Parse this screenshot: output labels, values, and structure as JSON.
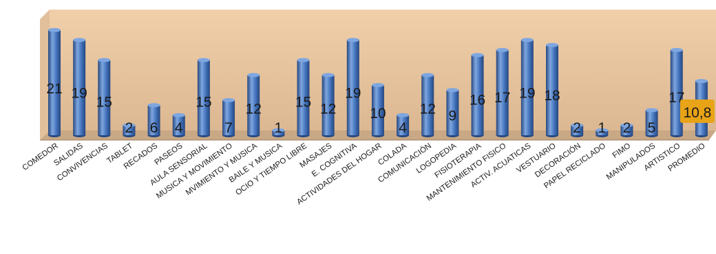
{
  "chart_data": {
    "type": "bar",
    "title": "",
    "xlabel": "",
    "ylabel": "",
    "ylim": [
      0,
      22
    ],
    "grid": false,
    "legend": "none",
    "categories": [
      "COMEDOR",
      "SALIDAS",
      "CONVIVENCIAS",
      "TABLET",
      "RECADOS",
      "PASEOS",
      "AULA SENSORIAL",
      "MUSICA Y MOVIMIENTO",
      "MVIMIENTO Y MUSICA",
      "BAILE Y MUSICA",
      "OCIO Y TIEMPO LIBRE",
      "MASAJES",
      "E. COGNITIVA",
      "ACTIVIDADES DEL HOGAR",
      "COLADA",
      "COMUNICACIÓN",
      "LOGOPEDIA",
      "FISIOTERAPIA",
      "MANTENIMIENTO FISICO",
      "ACTIV. ACUATICAS",
      "VESTUARIO",
      "DECORACIÓN",
      "PAPEL RECICLADO",
      "FIMO",
      "MANIPULADOS",
      "ARTISTICO",
      "PROMEDIO"
    ],
    "values": [
      21,
      19,
      15,
      2,
      6,
      4,
      15,
      7,
      12,
      1,
      15,
      12,
      19,
      10,
      4,
      12,
      9,
      16,
      17,
      19,
      18,
      2,
      1,
      2,
      5,
      17,
      10.8
    ],
    "data_labels": [
      "21",
      "19",
      "15",
      "2",
      "6",
      "4",
      "15",
      "7",
      "12",
      "1",
      "15",
      "12",
      "19",
      "10",
      "4",
      "12",
      "9",
      "16",
      "17",
      "19",
      "18",
      "2",
      "1",
      "2",
      "5",
      "17",
      "10,8"
    ],
    "highlight_index": 26,
    "colors": {
      "bar": "#3f6fb8",
      "bar_dark": "#27477e",
      "bar_light": "#7ea6e0",
      "wall_top": "#f0cfa9",
      "wall_bottom": "#dcb892",
      "floor": "#c9a886",
      "label": "#1a1a1a",
      "highlight_bg": "#e8a317"
    }
  }
}
